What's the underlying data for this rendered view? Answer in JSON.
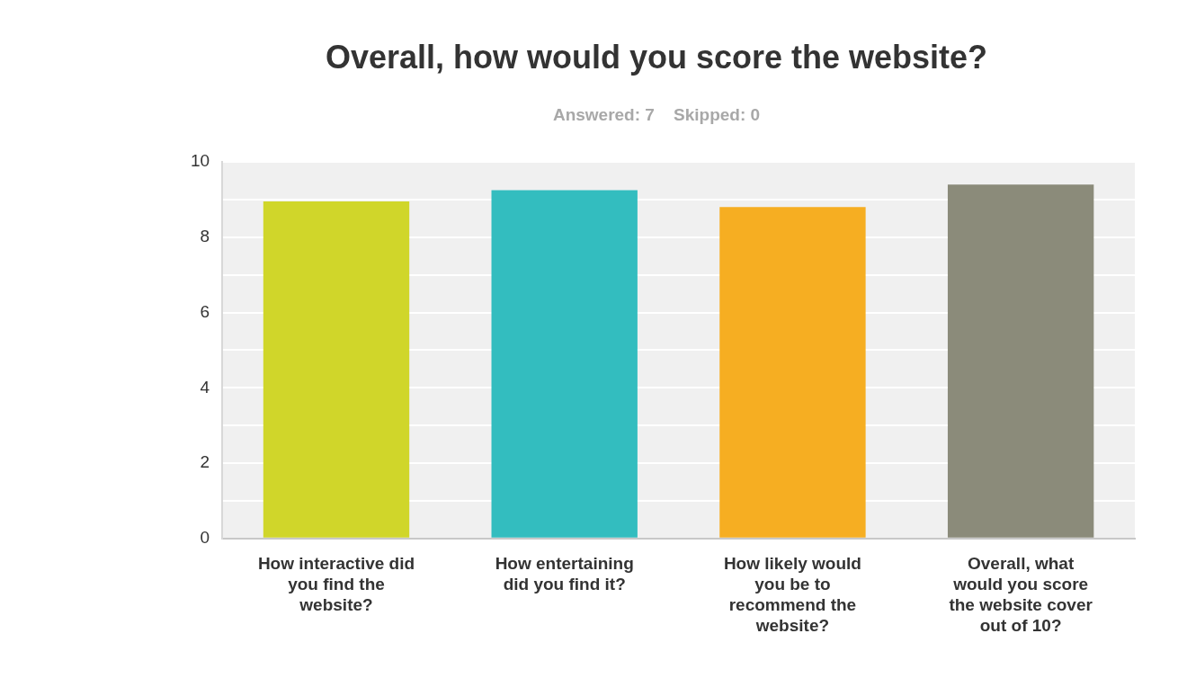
{
  "chart_data": {
    "type": "bar",
    "title": "Overall, how would you score the website?",
    "subtitle": "Answered: 7    Skipped: 0",
    "categories": [
      "How interactive did you find the website?",
      "How entertaining did you find it?",
      "How likely would you be to recommend the website?",
      "Overall, what would you score the website cover out of 10?"
    ],
    "values": [
      8.95,
      9.25,
      8.8,
      9.4
    ],
    "colors": [
      "#d0d62a",
      "#33bdbf",
      "#f6ae22",
      "#8b8b7a"
    ],
    "ylim": [
      0,
      10
    ],
    "yticks": [
      0,
      {
        "value": 1,
        "label": null
      },
      2,
      {
        "value": 3,
        "label": null
      },
      4,
      {
        "value": 5,
        "label": null
      },
      6,
      {
        "value": 7,
        "label": null
      },
      8,
      {
        "value": 9,
        "label": null
      },
      10
    ],
    "grid": "y",
    "legend": false
  }
}
